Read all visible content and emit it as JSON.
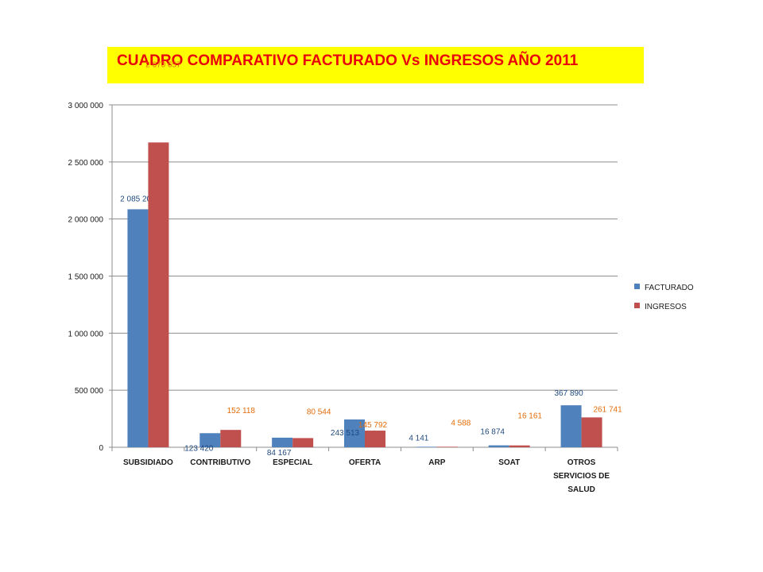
{
  "chart_data": {
    "type": "bar",
    "title": "CUADRO COMPARATIVO FACTURADO Vs INGRESOS AÑO 2011",
    "categories": [
      [
        "SUBSIDIADO"
      ],
      [
        "CONTRIBUTIVO"
      ],
      [
        "ESPECIAL"
      ],
      [
        "OFERTA"
      ],
      [
        "ARP"
      ],
      [
        "SOAT"
      ],
      [
        "OTROS",
        "SERVICIOS DE",
        "SALUD"
      ]
    ],
    "series": [
      {
        "name": "FACTURADO",
        "color": "#4f81bd",
        "label_color": "#1f497d",
        "values": [
          2085209,
          123420,
          84167,
          243513,
          4141,
          16874,
          367890
        ],
        "labels": [
          "2 085 209",
          "123 420",
          "84 167",
          "243 513",
          "4 141",
          "16 874",
          "367 890"
        ]
      },
      {
        "name": "INGRESOS",
        "color": "#c0504d",
        "label_color": "#e46c0a",
        "values": [
          2670657,
          152118,
          80544,
          145792,
          4588,
          16161,
          261741
        ],
        "labels": [
          "2 670 657",
          "152 118",
          "80 544",
          "145 792",
          "4 588",
          "16 161",
          "261 741"
        ]
      }
    ],
    "ylim": [
      0,
      3000000
    ],
    "yticks": [
      0,
      500000,
      1000000,
      1500000,
      2000000,
      2500000,
      3000000
    ],
    "ytick_labels": [
      "0",
      "500 000",
      "1 000 000",
      "1 500 000",
      "2 000 000",
      "2 500 000",
      "3 000 000"
    ],
    "grid": true,
    "legend_position": "right"
  }
}
